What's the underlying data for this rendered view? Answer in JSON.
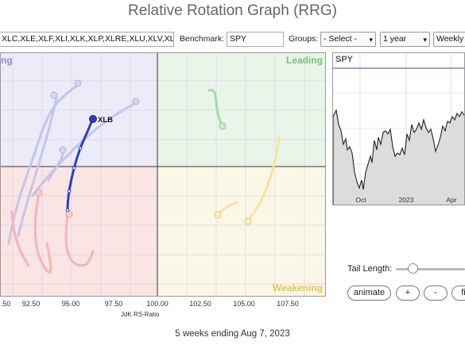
{
  "title": "Relative Rotation Graph (RRG)",
  "toolbar": {
    "symbols_value": "XLC,XLE,XLF,XLI,XLK,XLP,XLRE,XLU,XLV,XL",
    "benchmark_label": "Benchmark:",
    "benchmark_value": "SPY",
    "groups_label": "Groups:",
    "groups_value": "- Select -",
    "period_value": "1 year",
    "interval_value": "Weekly"
  },
  "rrg": {
    "quadrants": {
      "leading": "Leading",
      "weakening": "Weakening",
      "improving": "ng"
    },
    "x_ticks": [
      "92.50",
      "95.00",
      "97.50",
      "100.00",
      "102.50",
      "105.00",
      "107.50"
    ],
    "x_axis_title": "JdK RS-Ratio",
    "highlighted_label": "XLB",
    "colors": {
      "highlight": "#2c3fb8",
      "faded_blue": "#c3c6ea",
      "faded_red": "#f3b5b5",
      "faded_green": "#a8d9a8",
      "faded_yellow": "#f5e3a0"
    }
  },
  "spy_panel": {
    "label": "SPY",
    "x_ticks": [
      "Oct",
      "2023",
      "Apr"
    ]
  },
  "controls": {
    "tail_length_label": "Tail Length:",
    "animate_label": "animate",
    "plus_label": "+",
    "minus_label": "-",
    "fit_label": "fi"
  },
  "footer": "5 weeks ending Aug 7, 2023"
}
